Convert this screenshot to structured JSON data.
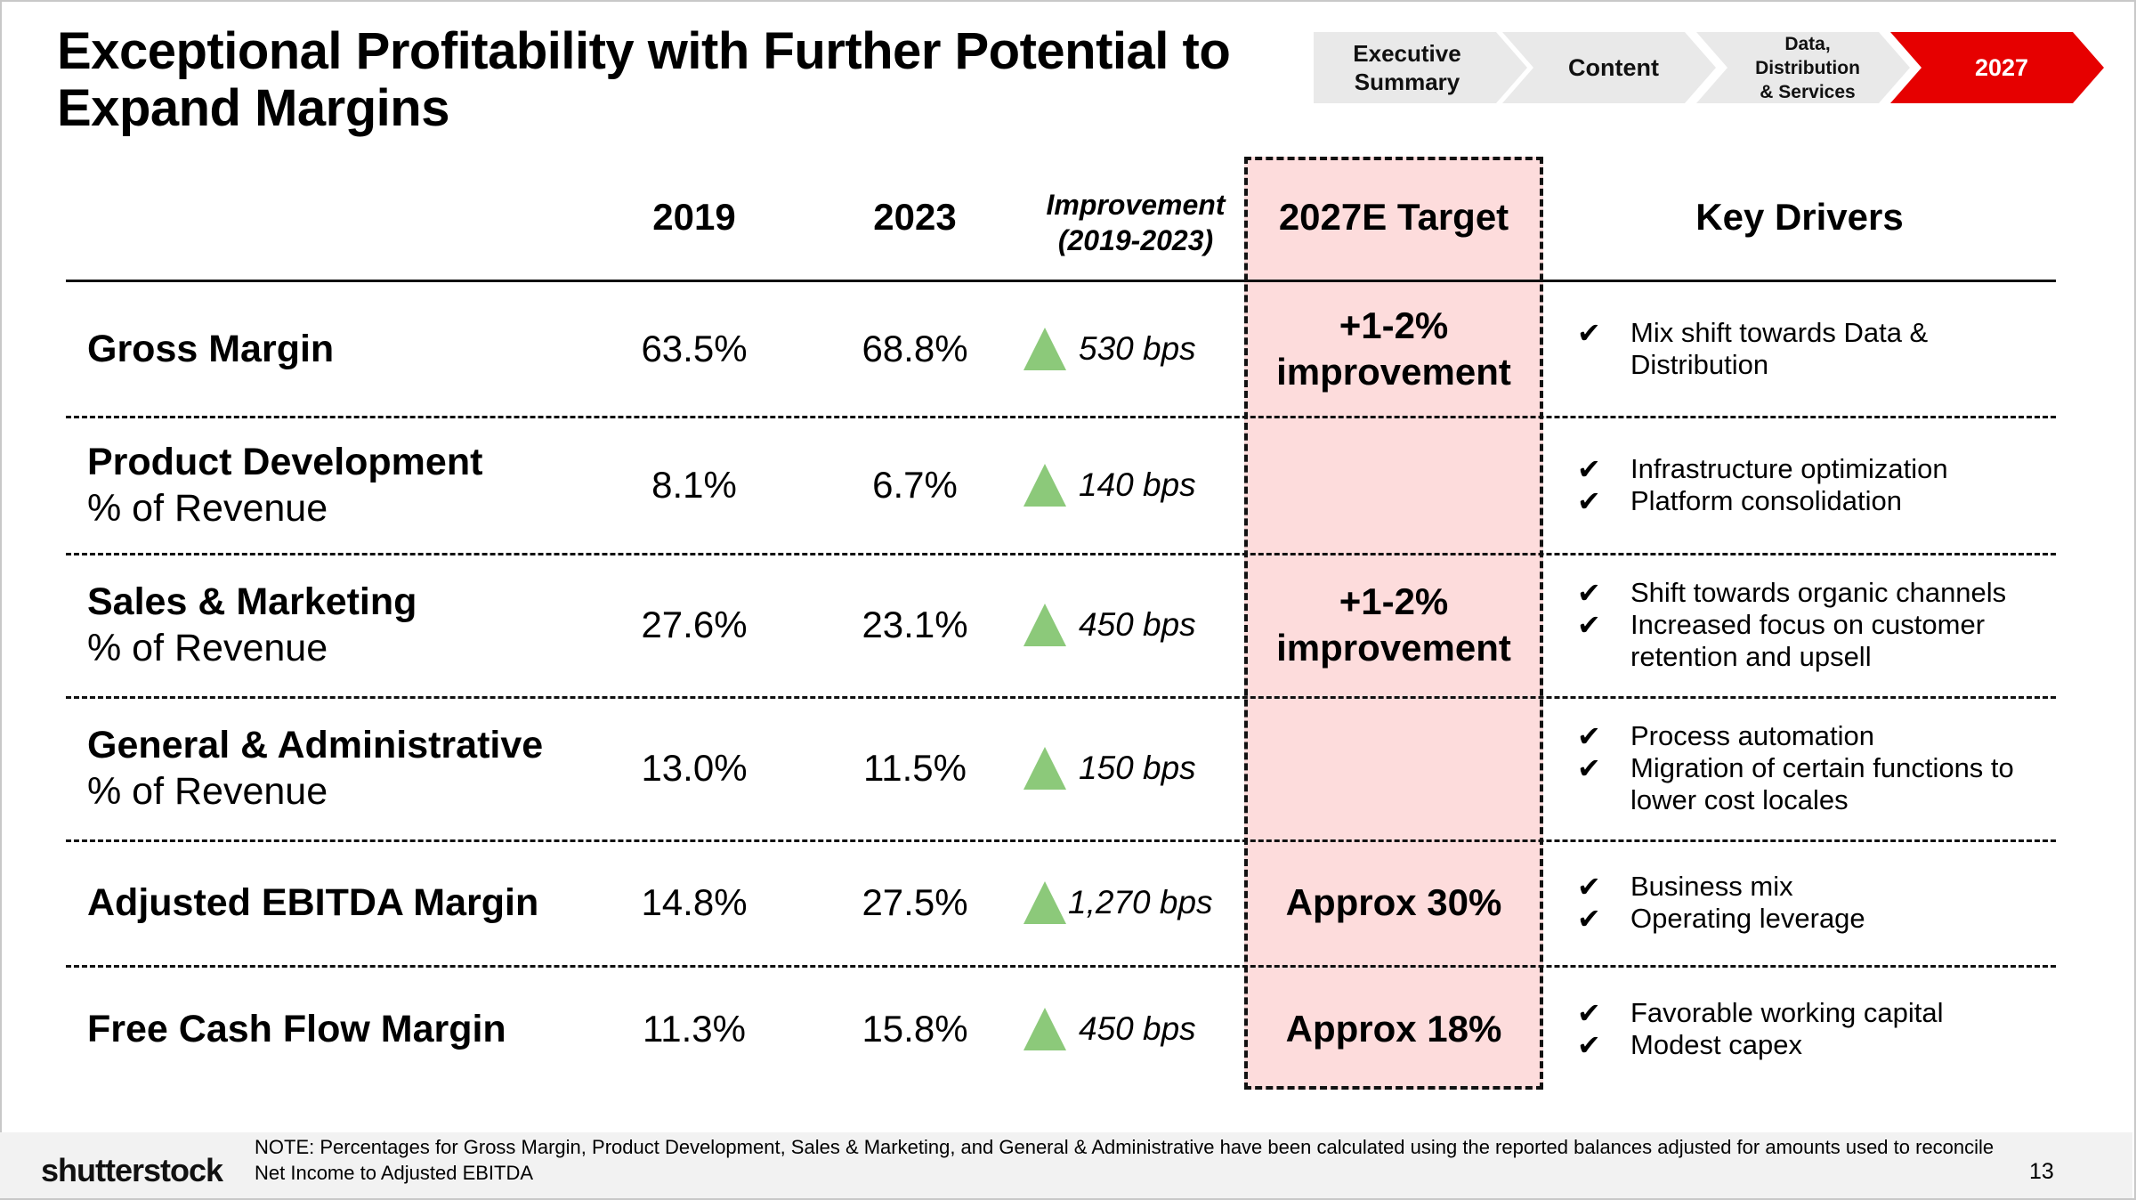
{
  "title": "Exceptional Profitability with Further Potential to Expand Margins",
  "nav": [
    {
      "label": "Executive\nSummary",
      "active": false
    },
    {
      "label": "Content",
      "active": false
    },
    {
      "label": "Data,\nDistribution\n& Services",
      "active": false
    },
    {
      "label": "2027",
      "active": true
    }
  ],
  "colors": {
    "accent": "#e60000",
    "target_fill": "#fddcdc",
    "up_arrow": "#8cc97a"
  },
  "table": {
    "headers": {
      "y2019": "2019",
      "y2023": "2023",
      "improvement_line1": "Improvement",
      "improvement_line2": "(2019-2023)",
      "target": "2027E Target",
      "drivers": "Key Drivers"
    },
    "rows": [
      {
        "name": "Gross Margin",
        "sub": "",
        "y2019": "63.5%",
        "y2023": "68.8%",
        "improvement": "530 bps",
        "drivers": [
          "Mix shift towards Data & Distribution"
        ]
      },
      {
        "name": "Product Development",
        "sub": "% of Revenue",
        "y2019": "8.1%",
        "y2023": "6.7%",
        "improvement": "140 bps",
        "drivers": [
          "Infrastructure optimization",
          "Platform consolidation"
        ]
      },
      {
        "name": "Sales & Marketing",
        "sub": "% of Revenue",
        "y2019": "27.6%",
        "y2023": "23.1%",
        "improvement": "450 bps",
        "drivers": [
          "Shift towards organic channels",
          "Increased focus on customer retention and upsell"
        ]
      },
      {
        "name": "General & Administrative",
        "sub": "% of Revenue",
        "y2019": "13.0%",
        "y2023": "11.5%",
        "improvement": "150 bps",
        "drivers": [
          "Process automation",
          "Migration of certain functions to lower cost locales"
        ]
      },
      {
        "name": "Adjusted EBITDA Margin",
        "sub": "",
        "y2019": "14.8%",
        "y2023": "27.5%",
        "improvement": "1,270 bps",
        "drivers": [
          "Business mix",
          "Operating leverage"
        ]
      },
      {
        "name": "Free Cash Flow Margin",
        "sub": "",
        "y2019": "11.3%",
        "y2023": "15.8%",
        "improvement": "450 bps",
        "drivers": [
          "Favorable working capital",
          "Modest capex"
        ]
      }
    ],
    "targets": {
      "gross_margin": "+1-2%\nimprovement",
      "opex": "+1-2%\nimprovement",
      "ebitda": "Approx 30%",
      "fcf": "Approx 18%"
    },
    "check_glyph": "✔"
  },
  "footer": {
    "logo": "shutterstock",
    "note": "NOTE: Percentages for Gross Margin, Product Development, Sales & Marketing, and General & Administrative have been calculated using the reported balances adjusted for amounts used to reconcile Net Income to Adjusted EBITDA",
    "page": "13"
  }
}
